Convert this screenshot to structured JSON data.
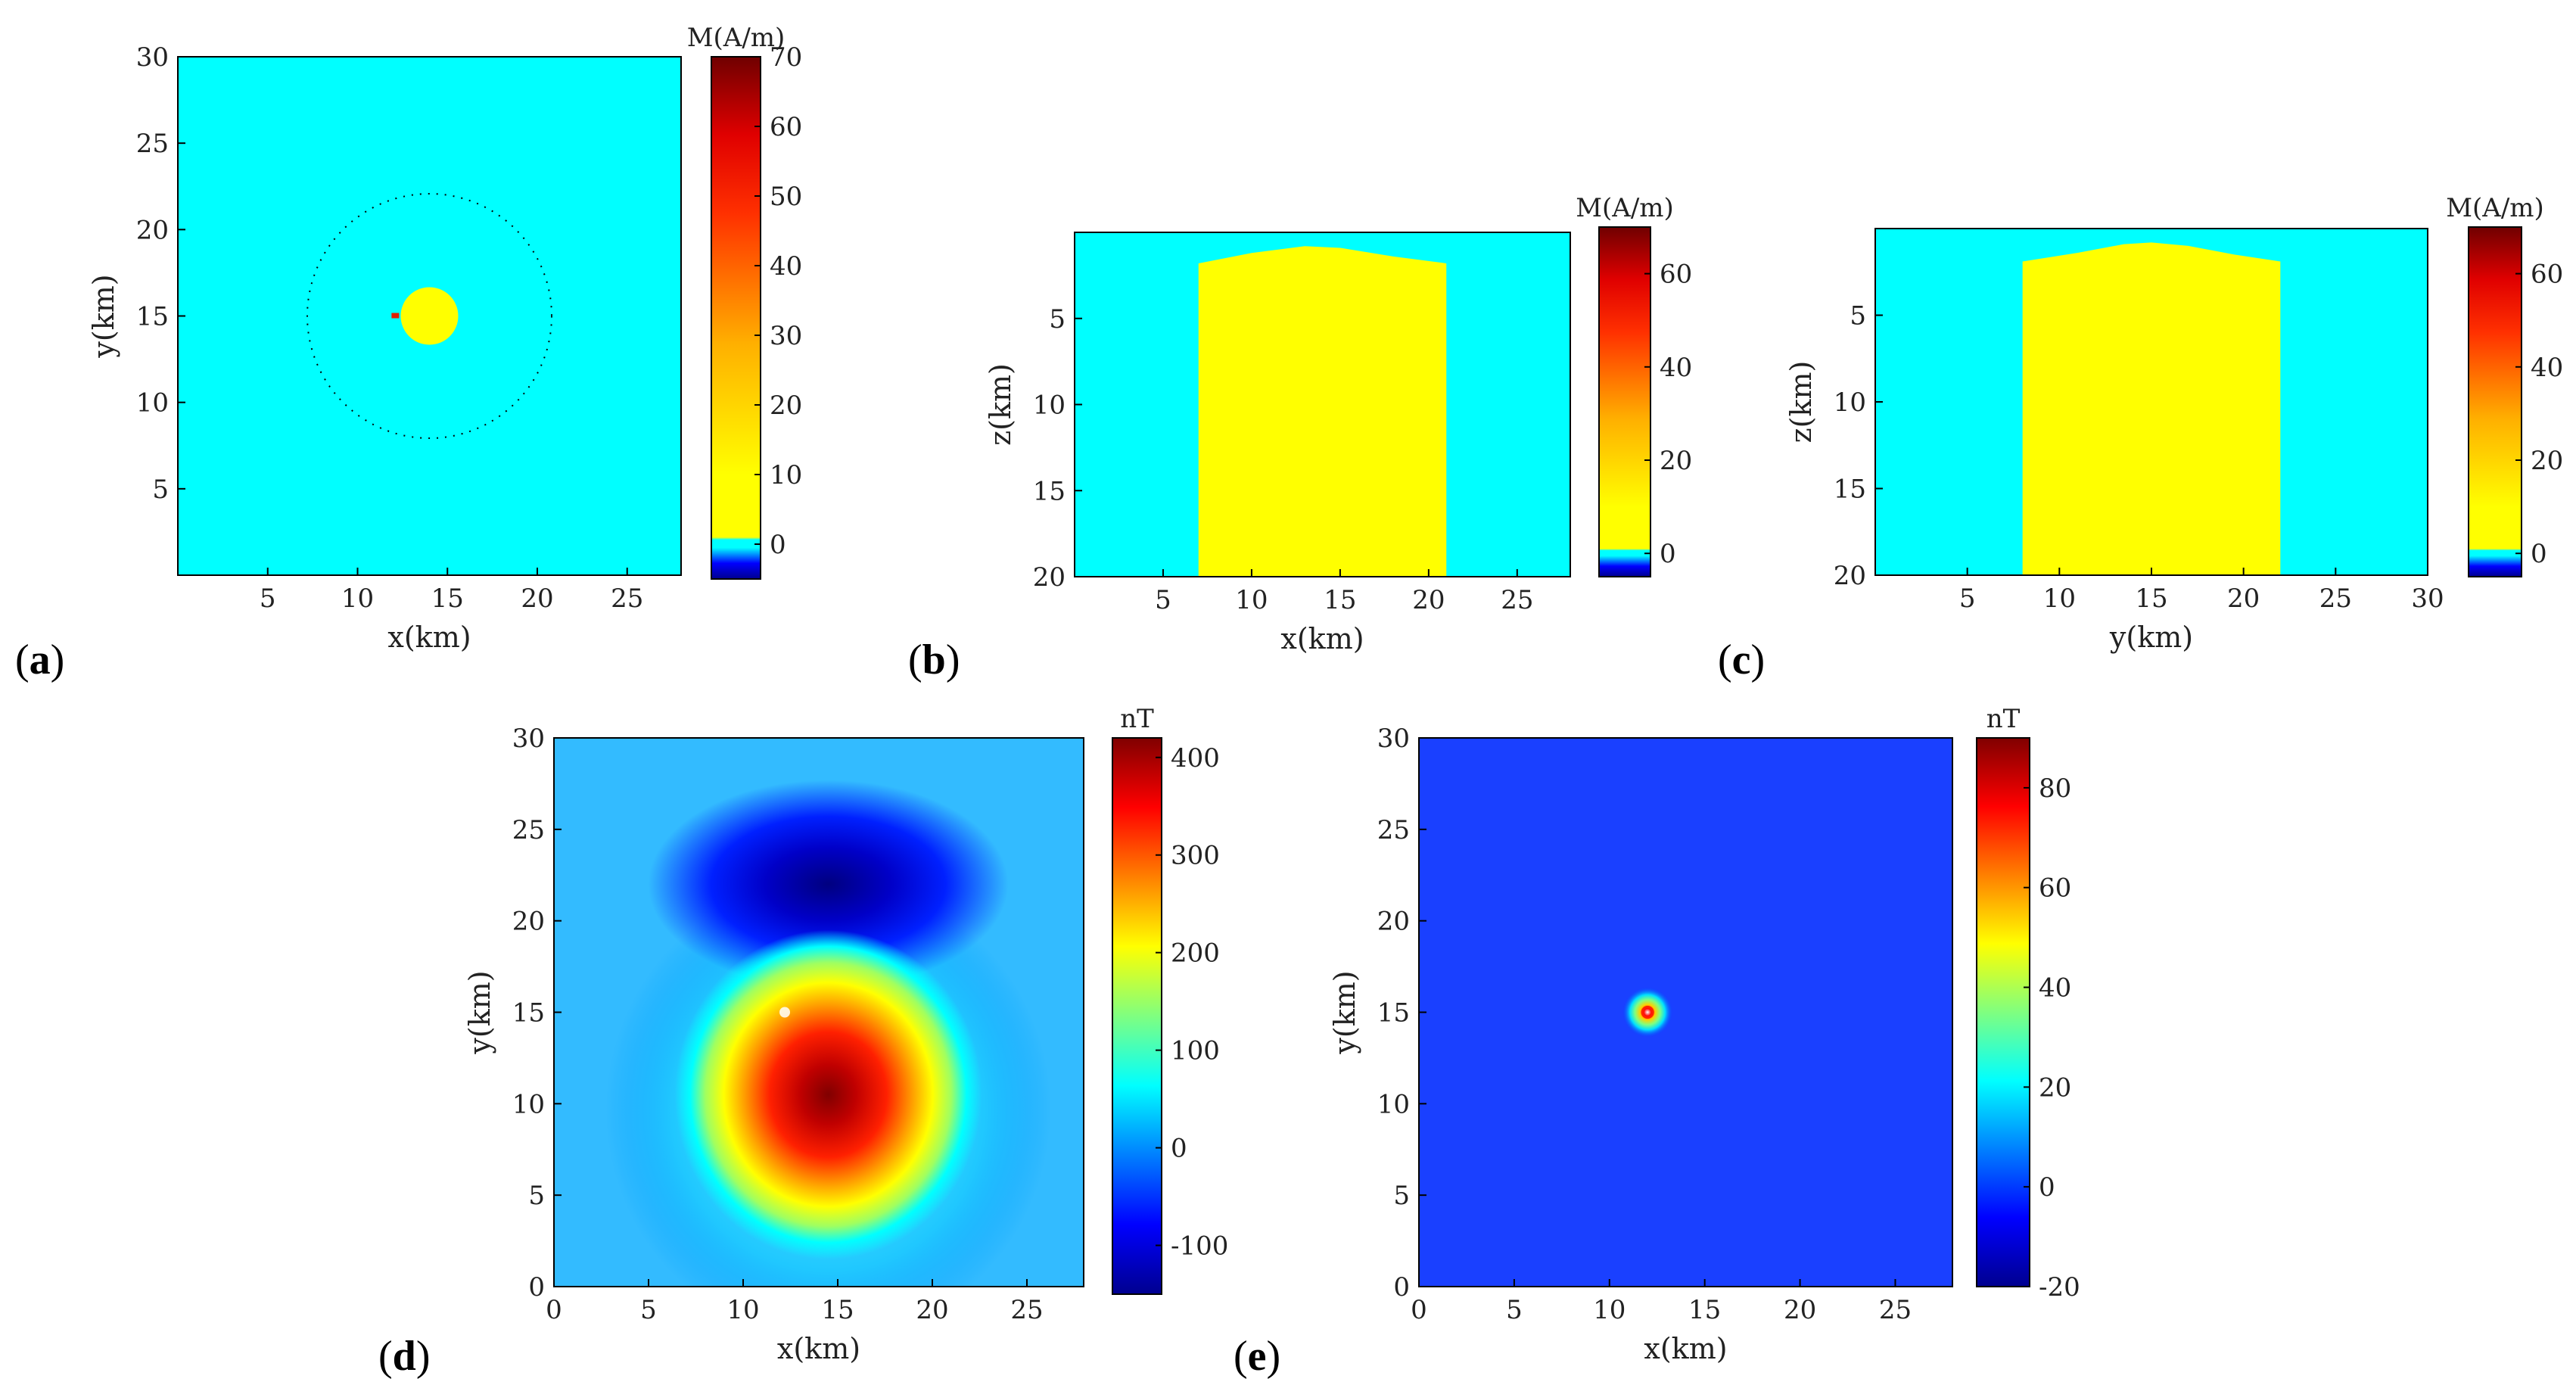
{
  "colors": {
    "cyan_background": "#00ffff",
    "body_yellow": "#ffff00",
    "dotted_outline": "#000000"
  },
  "chart_data": [
    {
      "id": "a",
      "type": "heatmap",
      "panel_label": "a",
      "title": "",
      "xlabel": "x(km)",
      "ylabel": "y(km)",
      "xlim": [
        0,
        28
      ],
      "ylim": [
        0,
        30
      ],
      "xticks": [
        5,
        10,
        15,
        20,
        25
      ],
      "yticks": [
        5,
        10,
        15,
        20,
        25,
        30
      ],
      "colorbar": {
        "label": "M(A/m)",
        "range": [
          -5,
          70
        ],
        "ticks": [
          0,
          10,
          20,
          30,
          40,
          50,
          60,
          70
        ]
      },
      "background_value": 0,
      "body": {
        "shape": "circle",
        "center": [
          14,
          15
        ],
        "radius": 1.6,
        "value": 10
      },
      "outline": {
        "shape": "dotted-circle",
        "center": [
          14,
          15
        ],
        "radius": 6.8
      },
      "marker": {
        "x": 12.1,
        "y": 15,
        "value": 60
      }
    },
    {
      "id": "b",
      "type": "heatmap",
      "panel_label": "b",
      "title": "",
      "xlabel": "x(km)",
      "ylabel": "z(km)",
      "xlim": [
        0,
        28
      ],
      "ylim": [
        20,
        0
      ],
      "xticks": [
        5,
        10,
        15,
        20,
        25
      ],
      "yticks": [
        5,
        10,
        15,
        20
      ],
      "colorbar": {
        "label": "M(A/m)",
        "range": [
          -5,
          70
        ],
        "ticks": [
          0,
          20,
          40,
          60
        ]
      },
      "background_value": 0,
      "body": {
        "shape": "profile",
        "value": 10,
        "bottom": 20,
        "top_profile": [
          [
            7,
            1.8
          ],
          [
            10,
            1.2
          ],
          [
            13,
            0.8
          ],
          [
            15,
            0.9
          ],
          [
            18,
            1.4
          ],
          [
            21,
            1.8
          ]
        ]
      }
    },
    {
      "id": "c",
      "type": "heatmap",
      "panel_label": "c",
      "title": "",
      "xlabel": "y(km)",
      "ylabel": "z(km)",
      "xlim": [
        0,
        30
      ],
      "ylim": [
        20,
        0
      ],
      "xticks": [
        5,
        10,
        15,
        20,
        25,
        30
      ],
      "yticks": [
        5,
        10,
        15,
        20
      ],
      "colorbar": {
        "label": "M(A/m)",
        "range": [
          -5,
          70
        ],
        "ticks": [
          0,
          20,
          40,
          60
        ]
      },
      "background_value": 0,
      "body": {
        "shape": "profile",
        "value": 10,
        "bottom": 20,
        "top_profile": [
          [
            8,
            1.9
          ],
          [
            11,
            1.4
          ],
          [
            13.5,
            0.9
          ],
          [
            15,
            0.8
          ],
          [
            17,
            1.0
          ],
          [
            19.5,
            1.5
          ],
          [
            22,
            1.9
          ]
        ]
      }
    },
    {
      "id": "d",
      "type": "heatmap",
      "panel_label": "d",
      "title": "",
      "xlabel": "x(km)",
      "ylabel": "y(km)",
      "xlim": [
        0,
        28
      ],
      "ylim": [
        0,
        30
      ],
      "xticks": [
        0,
        5,
        10,
        15,
        20,
        25
      ],
      "yticks": [
        0,
        5,
        10,
        15,
        20,
        25,
        30
      ],
      "colorbar": {
        "label": "nT",
        "range": [
          -150,
          420
        ],
        "ticks": [
          -100,
          0,
          100,
          200,
          300,
          400
        ]
      },
      "field": {
        "baseline": 45,
        "positive_peak": {
          "x": 14.5,
          "y": 10.5,
          "value": 420
        },
        "negative_peak": {
          "x": 14.5,
          "y": 22,
          "value": -150
        }
      },
      "marker": {
        "x": 12.2,
        "y": 15
      }
    },
    {
      "id": "e",
      "type": "heatmap",
      "panel_label": "e",
      "title": "",
      "xlabel": "x(km)",
      "ylabel": "y(km)",
      "xlim": [
        0,
        28
      ],
      "ylim": [
        0,
        30
      ],
      "xticks": [
        0,
        5,
        10,
        15,
        20,
        25
      ],
      "yticks": [
        0,
        5,
        10,
        15,
        20,
        25,
        30
      ],
      "colorbar": {
        "label": "nT",
        "range": [
          -20,
          90
        ],
        "ticks": [
          -20,
          0,
          20,
          40,
          60,
          80
        ]
      },
      "field": {
        "baseline": 0,
        "positive_peak": {
          "x": 12,
          "y": 15,
          "value": 90,
          "spread_km": 0.6
        }
      }
    }
  ]
}
